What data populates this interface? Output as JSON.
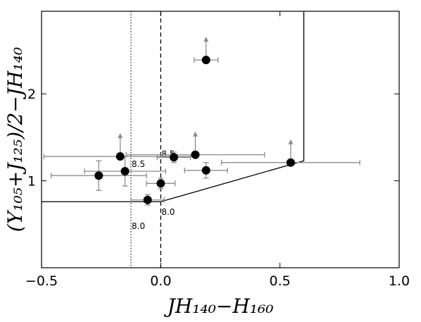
{
  "chart_data": {
    "type": "scatter",
    "xlabel": "JH₁₄₀−H₁₆₀",
    "ylabel": "(Y₁₀₅+J₁₂₅)/2−JH₁₄₀",
    "xlim": [
      -0.5,
      1.0
    ],
    "ylim": [
      0.0,
      2.95
    ],
    "x_ticks": [
      "−0.5",
      "0.0",
      "0.5",
      "1.0"
    ],
    "y_ticks": [
      "1",
      "2"
    ],
    "x_tick_values": [
      -0.5,
      0.0,
      0.5,
      1.0
    ],
    "y_tick_values": [
      1,
      2
    ],
    "grid": false,
    "points": [
      {
        "x": -0.26,
        "y": 1.06,
        "xerr": 0.2,
        "yerr": 0.17,
        "lower_limit": false
      },
      {
        "x": -0.17,
        "y": 1.28,
        "xerr": 0.32,
        "yerr": 0.12,
        "lower_limit": true
      },
      {
        "x": -0.15,
        "y": 1.11,
        "xerr": 0.17,
        "yerr": 0.17,
        "lower_limit": false
      },
      {
        "x": -0.055,
        "y": 0.78,
        "xerr": 0.07,
        "yerr": 0.06,
        "lower_limit": false
      },
      {
        "x": 0.0,
        "y": 0.97,
        "xerr": 0.06,
        "yerr": 0.06,
        "lower_limit": false
      },
      {
        "x": 0.055,
        "y": 1.27,
        "xerr": 0.07,
        "yerr": 0.06,
        "lower_limit": false
      },
      {
        "x": 0.145,
        "y": 1.3,
        "xerr": 0.29,
        "yerr": 0.1,
        "lower_limit": true
      },
      {
        "x": 0.19,
        "y": 1.12,
        "xerr": 0.09,
        "yerr": 0.09,
        "lower_limit": false
      },
      {
        "x": 0.19,
        "y": 2.39,
        "xerr": 0.05,
        "yerr": 0.05,
        "lower_limit": true
      },
      {
        "x": 0.545,
        "y": 1.21,
        "xerr": 0.29,
        "yerr": 0.0,
        "lower_limit": true
      }
    ],
    "selection_region": [
      [
        -0.5,
        0.76
      ],
      [
        0.0,
        0.76
      ],
      [
        0.6,
        1.23
      ],
      [
        0.6,
        2.95
      ]
    ],
    "dotted_line_x": -0.125,
    "dashed_line_x": 0.0,
    "annotations": [
      {
        "text": "8.5",
        "x": -0.125,
        "y": 1.19
      },
      {
        "text": "8.5",
        "x": 0.0,
        "y": 1.31
      },
      {
        "text": "8.0",
        "x": -0.125,
        "y": 0.48
      },
      {
        "text": "8.0",
        "x": 0.0,
        "y": 0.64
      }
    ],
    "colors": {
      "point": "#000000",
      "errorbar": "#8c8c8c",
      "line": "#000000"
    }
  }
}
